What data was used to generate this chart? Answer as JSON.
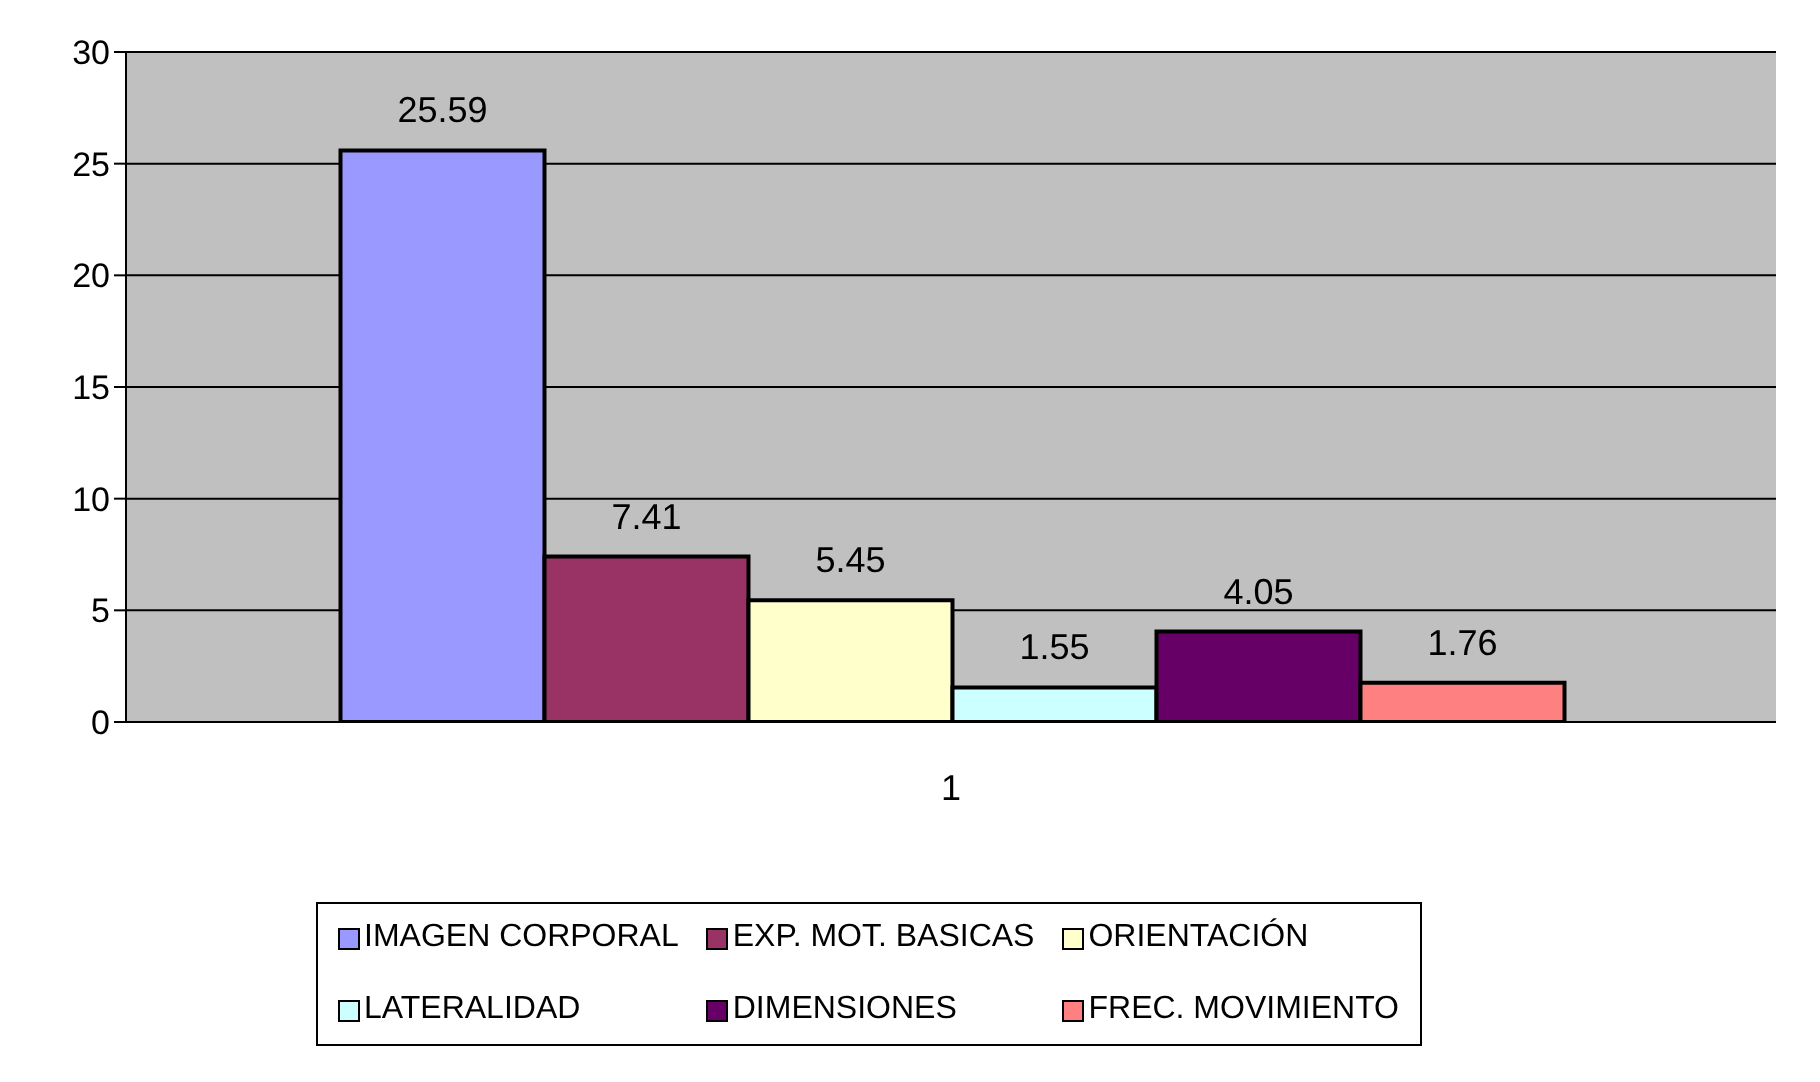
{
  "chart_data": {
    "type": "bar",
    "categories": [
      "1"
    ],
    "series": [
      {
        "name": "IMAGEN CORPORAL",
        "color": "#9999ff",
        "values": [
          25.59
        ]
      },
      {
        "name": "EXP. MOT. BASICAS",
        "color": "#993366",
        "values": [
          7.41
        ]
      },
      {
        "name": "ORIENTACIÓN",
        "color": "#ffffcc",
        "values": [
          5.45
        ]
      },
      {
        "name": "LATERALIDAD",
        "color": "#ccffff",
        "values": [
          1.55
        ]
      },
      {
        "name": "DIMENSIONES",
        "color": "#660066",
        "values": [
          4.05
        ]
      },
      {
        "name": "FREC. MOVIMIENTO",
        "color": "#ff8080",
        "values": [
          1.76
        ]
      }
    ],
    "ylim": [
      0,
      30
    ],
    "yticks": [
      0,
      5,
      10,
      15,
      20,
      25,
      30
    ],
    "grid": "y",
    "legend": "bottom",
    "data_labels": true
  }
}
